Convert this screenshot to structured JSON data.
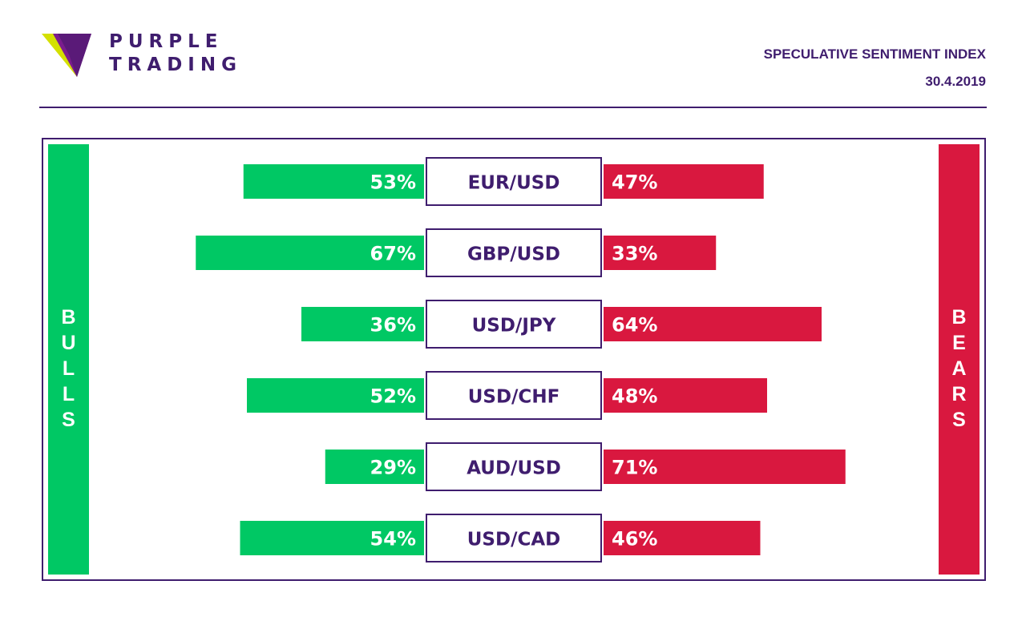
{
  "brand": {
    "line1": "PURPLE",
    "line2": "TRADING"
  },
  "header": {
    "title": "SPECULATIVE SENTIMENT INDEX",
    "date": "30.4.2019"
  },
  "colors": {
    "accent": "#3f1d6e",
    "bulls": "#00c864",
    "bears": "#d9183f",
    "logo_yellow": "#d4e000",
    "logo_purple": "#7b1d8e"
  },
  "chart_data": {
    "type": "bar",
    "orientation": "diverging-horizontal",
    "categories": [
      "EUR/USD",
      "GBP/USD",
      "USD/JPY",
      "USD/CHF",
      "AUD/USD",
      "USD/CAD"
    ],
    "series": [
      {
        "name": "BULLS",
        "values": [
          53,
          67,
          36,
          52,
          29,
          54
        ],
        "labels": [
          "53%",
          "67%",
          "36%",
          "52%",
          "29%",
          "54%"
        ]
      },
      {
        "name": "BEARS",
        "values": [
          47,
          33,
          64,
          48,
          71,
          46
        ],
        "labels": [
          "47%",
          "33%",
          "64%",
          "48%",
          "71%",
          "46%"
        ]
      }
    ],
    "unit": "%"
  }
}
